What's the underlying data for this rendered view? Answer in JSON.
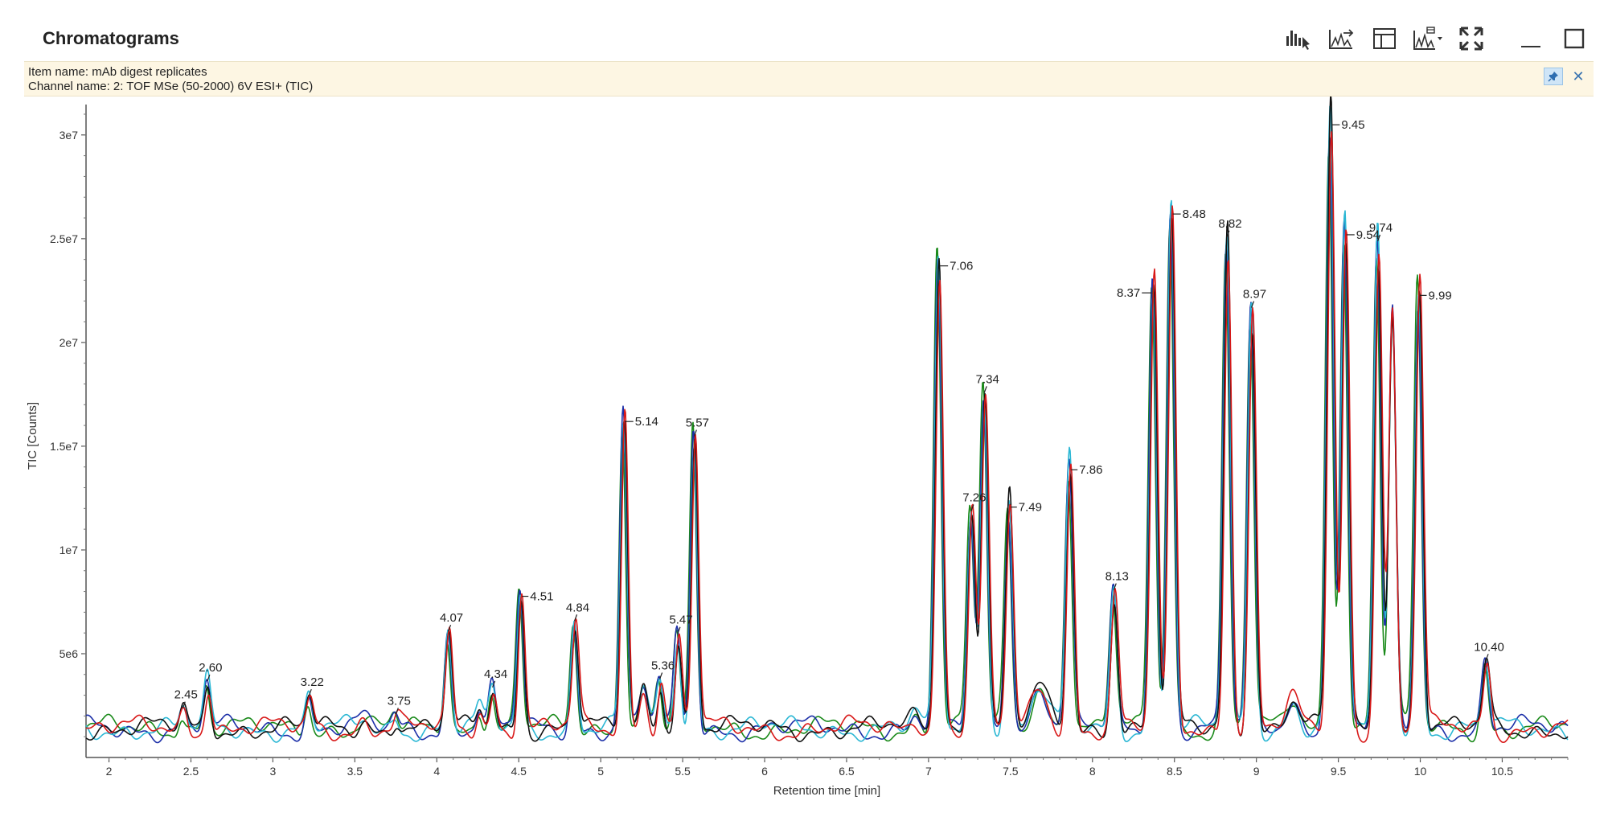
{
  "window": {
    "title": "Chromatograms",
    "toolbar": [
      {
        "icon": "peak-select-icon",
        "name": "peak-select-button"
      },
      {
        "icon": "overlay-chromatograms-icon",
        "name": "overlay-button"
      },
      {
        "icon": "table-layout-icon",
        "name": "layout-button"
      },
      {
        "icon": "chromatogram-view-dropdown-icon",
        "name": "view-dropdown-button"
      },
      {
        "icon": "fit-to-view-icon",
        "name": "fit-to-view-button"
      },
      {
        "icon": "minimize-icon",
        "name": "minimize-button"
      },
      {
        "icon": "maximize-icon",
        "name": "maximize-button"
      }
    ]
  },
  "info": {
    "item_name": "Item name: mAb digest replicates",
    "channel_name": "Channel name: 2: TOF MSe (50-2000) 6V ESI+ (TIC)",
    "pin_icon": "pin-icon",
    "close_icon": "close-icon"
  },
  "chart_data": {
    "type": "line",
    "xlabel": "Retention time [min]",
    "ylabel": "TIC [Counts]",
    "xlim": [
      1.86,
      10.9
    ],
    "ylim": [
      0,
      31000000
    ],
    "x_ticks": [
      2,
      2.5,
      3,
      3.5,
      4,
      4.5,
      5,
      5.5,
      6,
      6.5,
      7,
      7.5,
      8,
      8.5,
      9,
      9.5,
      10,
      10.5
    ],
    "x_tick_labels": [
      "2",
      "2.5",
      "3",
      "3.5",
      "4",
      "4.5",
      "5",
      "5.5",
      "6",
      "6.5",
      "7",
      "7.5",
      "8",
      "8.5",
      "9",
      "9.5",
      "10",
      "10.5"
    ],
    "y_ticks": [
      5000000,
      10000000,
      15000000,
      20000000,
      25000000,
      30000000
    ],
    "y_tick_labels": [
      "5e6",
      "1e7",
      "1.5e7",
      "2e7",
      "2.5e7",
      "3e7"
    ],
    "grid": false,
    "baseline": 1400000,
    "series_colors": [
      "#1a8a1a",
      "#1c2fa8",
      "#2bb7d4",
      "#111111",
      "#d81818"
    ],
    "peaks": [
      {
        "rt": 2.45,
        "height": 2300000,
        "label": "2.45"
      },
      {
        "rt": 2.6,
        "height": 3600000,
        "label": "2.60"
      },
      {
        "rt": 3.22,
        "height": 2900000,
        "label": "3.22"
      },
      {
        "rt": 3.75,
        "height": 2000000,
        "label": "3.75"
      },
      {
        "rt": 4.07,
        "height": 6000000,
        "label": "4.07"
      },
      {
        "rt": 4.34,
        "height": 3300000,
        "label": "4.34"
      },
      {
        "rt": 4.51,
        "height": 8000000,
        "label": "4.51"
      },
      {
        "rt": 4.84,
        "height": 6500000,
        "label": "4.84"
      },
      {
        "rt": 5.14,
        "height": 16500000,
        "label": "5.14"
      },
      {
        "rt": 5.36,
        "height": 3700000,
        "label": "5.36"
      },
      {
        "rt": 5.47,
        "height": 5900000,
        "label": "5.47"
      },
      {
        "rt": 5.57,
        "height": 15400000,
        "label": "5.57"
      },
      {
        "rt": 7.06,
        "height": 24000000,
        "label": "7.06"
      },
      {
        "rt": 7.26,
        "height": 11800000,
        "label": "7.26"
      },
      {
        "rt": 7.34,
        "height": 17500000,
        "label": "7.34"
      },
      {
        "rt": 7.49,
        "height": 12300000,
        "label": "7.49"
      },
      {
        "rt": 7.86,
        "height": 14100000,
        "label": "7.86"
      },
      {
        "rt": 8.13,
        "height": 8000000,
        "label": "8.13"
      },
      {
        "rt": 8.37,
        "height": 22700000,
        "label": "8.37"
      },
      {
        "rt": 8.48,
        "height": 26500000,
        "label": "8.48"
      },
      {
        "rt": 8.82,
        "height": 25000000,
        "label": "8.82"
      },
      {
        "rt": 8.97,
        "height": 21600000,
        "label": "8.97"
      },
      {
        "rt": 9.45,
        "height": 30800000,
        "label": "9.45"
      },
      {
        "rt": 9.54,
        "height": 25500000,
        "label": "9.54"
      },
      {
        "rt": 9.74,
        "height": 24800000,
        "label": "9.74"
      },
      {
        "rt": 9.99,
        "height": 22500000,
        "label": "9.99"
      },
      {
        "rt": 10.4,
        "height": 4600000,
        "label": "10.40"
      }
    ]
  }
}
